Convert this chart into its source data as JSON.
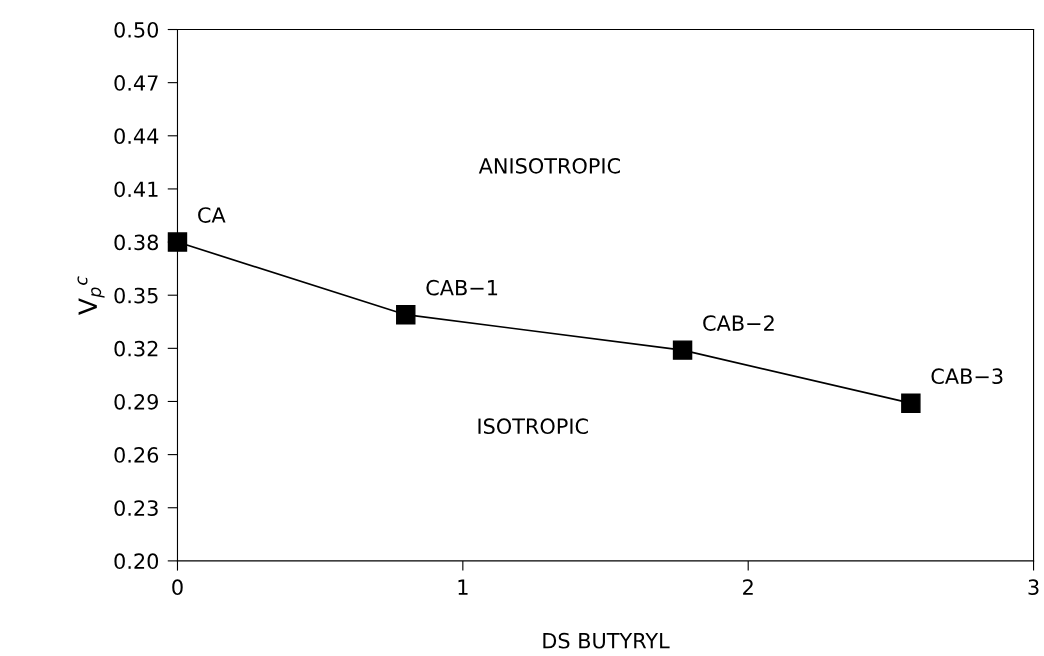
{
  "chart_data": {
    "type": "line",
    "xlabel": "DS BUTYRYL",
    "ylabel": "V$_{p}$$^{c}$",
    "x": [
      0,
      0.8,
      1.77,
      2.57
    ],
    "series": [
      {
        "color": "#000000",
        "values": [
          0.38,
          0.339,
          0.319,
          0.289
        ]
      }
    ],
    "marker": "square",
    "line_style": "solid",
    "xlim": [
      0,
      3
    ],
    "xticks": [
      0,
      1,
      2,
      3
    ],
    "ylim": [
      0.2,
      0.5
    ],
    "yticks": [
      {
        "value": 0.2,
        "label": "0.20"
      },
      0.23,
      0.26,
      0.29,
      0.32,
      0.35,
      0.38,
      0.41,
      0.44,
      0.47,
      {
        "value": 0.5,
        "label": "0.50"
      }
    ],
    "grid": false,
    "annotations": [
      {
        "text": "CA",
        "x": 0,
        "y": 0.38
      },
      {
        "text": "CAB−1",
        "x": 0.8,
        "y": 0.339
      },
      {
        "text": "CAB−2",
        "x": 1.77,
        "y": 0.319
      },
      {
        "text": "CAB−3",
        "x": 2.57,
        "y": 0.289
      },
      "ANISOTROPIC",
      "ISOTROPIC"
    ]
  }
}
